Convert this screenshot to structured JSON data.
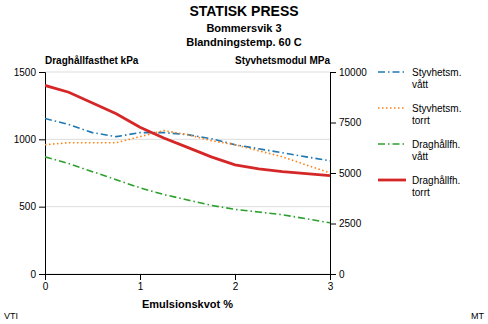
{
  "chart_data": {
    "type": "line",
    "title": "STATISK PRESS",
    "subtitle": [
      "Bommersvik 3",
      "Blandningstemp. 60 C"
    ],
    "xlabel": "Emulsionskvot %",
    "ylabel": "Draghållfasthet kPa",
    "y2label": "Styvhetsmodul MPa",
    "annotations": [
      "VTI",
      "MT"
    ],
    "x": [
      0,
      0.25,
      0.5,
      0.75,
      1.0,
      1.25,
      1.5,
      1.75,
      2.0,
      2.25,
      2.5,
      2.75,
      3.0
    ],
    "series": [
      {
        "name": "Styvhetsm.\nvått",
        "axis": "y2",
        "line_style": "dashdot",
        "values": [
          7700,
          7400,
          7000,
          6800,
          7000,
          7000,
          6900,
          6700,
          6400,
          6200,
          6000,
          5800,
          5600
        ]
      },
      {
        "name": "Styvhetsm.\ntorrt",
        "axis": "y2",
        "line_style": "dotted",
        "values": [
          6400,
          6500,
          6500,
          6500,
          6800,
          7100,
          6900,
          6600,
          6400,
          6100,
          5800,
          5400,
          5000
        ]
      },
      {
        "name": "Draghållfh.\nvått",
        "line_style": "dashdot",
        "values": [
          870,
          820,
          760,
          700,
          640,
          590,
          550,
          510,
          480,
          460,
          440,
          410,
          380
        ]
      },
      {
        "name": "Draghållfh.\ntorrt",
        "line_style": "solid",
        "values": [
          1400,
          1350,
          1270,
          1190,
          1090,
          1010,
          940,
          870,
          810,
          780,
          760,
          745,
          730
        ]
      }
    ],
    "xlim": [
      0,
      3
    ],
    "xticks": [
      0,
      1,
      2,
      3
    ],
    "ylim": [
      0,
      1500
    ],
    "yticks": [
      0,
      500,
      1000,
      1500
    ],
    "y2lim": [
      0,
      10000
    ],
    "y2ticks": [
      0,
      2500,
      5000,
      7500,
      10000
    ],
    "grid": true,
    "legend": "right"
  }
}
